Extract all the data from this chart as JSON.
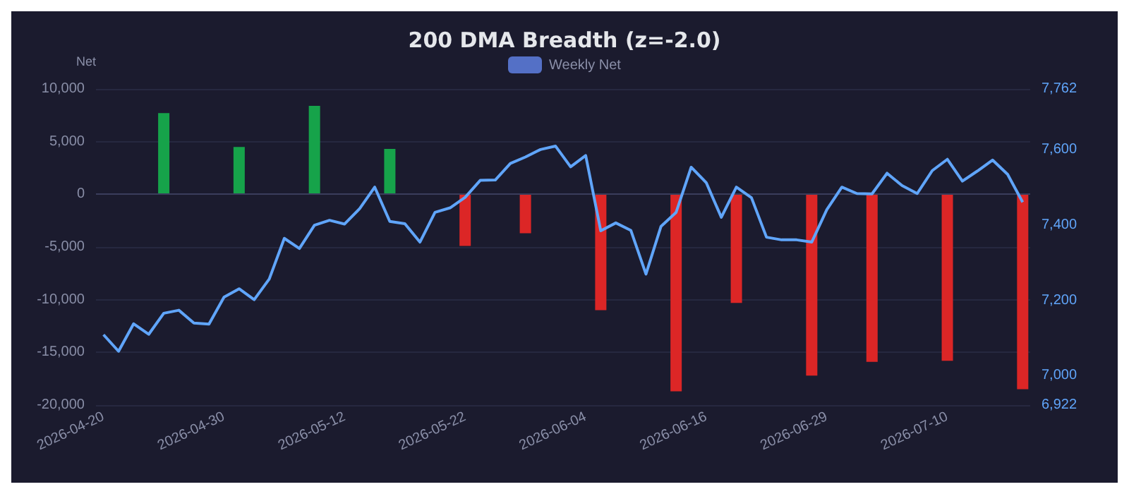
{
  "chart_data": {
    "type": "bar",
    "title": "200 DMA Breadth (z=-2.0)",
    "ylabel": "Net",
    "categories": [
      "2026-04-20",
      null,
      null,
      null,
      null,
      null,
      null,
      null,
      "2026-04-30",
      null,
      null,
      null,
      null,
      null,
      null,
      null,
      "2026-05-12",
      null,
      null,
      null,
      null,
      null,
      null,
      null,
      "2026-05-22",
      null,
      null,
      null,
      null,
      null,
      null,
      null,
      "2026-06-04",
      null,
      null,
      null,
      null,
      null,
      null,
      null,
      "2026-06-16",
      null,
      null,
      null,
      null,
      null,
      null,
      null,
      "2026-06-29",
      null,
      null,
      null,
      null,
      null,
      null,
      null,
      "2026-07-10",
      null,
      null,
      null,
      null,
      null
    ],
    "series": [
      {
        "name": "Weekly Net",
        "color": "#5470c6",
        "values": [
          null,
          null,
          null,
          null,
          7700,
          null,
          null,
          null,
          null,
          4500,
          null,
          null,
          null,
          null,
          8400,
          null,
          null,
          null,
          null,
          4300,
          null,
          null,
          null,
          null,
          -4900,
          null,
          null,
          null,
          -3700,
          null,
          null,
          null,
          null,
          -11000,
          null,
          null,
          null,
          null,
          -18700,
          null,
          null,
          null,
          -10300,
          null,
          null,
          null,
          null,
          -17200,
          null,
          null,
          null,
          -15900,
          null,
          null,
          null,
          null,
          -15800,
          null,
          null,
          null,
          null,
          -18500
        ],
        "colors": [
          null,
          null,
          null,
          null,
          "#16a34a",
          null,
          null,
          null,
          null,
          "#16a34a",
          null,
          null,
          null,
          null,
          "#16a34a",
          null,
          null,
          null,
          null,
          "#16a34a",
          null,
          null,
          null,
          null,
          "#dc2626",
          null,
          null,
          null,
          "#dc2626",
          null,
          null,
          null,
          null,
          "#dc2626",
          null,
          null,
          null,
          null,
          "#dc2626",
          null,
          null,
          null,
          "#dc2626",
          null,
          null,
          null,
          null,
          "#dc2626",
          null,
          null,
          null,
          "#dc2626",
          null,
          null,
          null,
          null,
          "#dc2626",
          null,
          null,
          null,
          null,
          "#dc2626"
        ]
      },
      {
        "type": "line",
        "axis": "y2",
        "color": "#60a5fa",
        "values": [
          7109,
          7065,
          7138,
          7110,
          7166,
          7174,
          7140,
          7137,
          7209,
          7231,
          7202,
          7257,
          7365,
          7338,
          7400,
          7413,
          7403,
          7444,
          7501,
          7410,
          7404,
          7355,
          7434,
          7446,
          7474,
          7519,
          7520,
          7564,
          7581,
          7601,
          7610,
          7555,
          7585,
          7385,
          7406,
          7386,
          7270,
          7397,
          7434,
          7554,
          7513,
          7421,
          7501,
          7473,
          7368,
          7361,
          7361,
          7355,
          7441,
          7501,
          7484,
          7483,
          7538,
          7505,
          7484,
          7545,
          7575,
          7517,
          7544,
          7573,
          7535,
          7461
        ]
      }
    ],
    "ylim": [
      -20000,
      10000
    ],
    "yticks": [
      {
        "value": -20000,
        "label": "-20,000"
      },
      {
        "value": -15000,
        "label": "-15,000"
      },
      {
        "value": -10000,
        "label": "-10,000"
      },
      {
        "value": -5000,
        "label": "-5,000"
      },
      0,
      {
        "value": 5000,
        "label": "5,000"
      },
      {
        "value": 10000,
        "label": "10,000"
      }
    ],
    "y2lim": [
      6922,
      7762
    ],
    "y2ticks": [
      {
        "value": 6922,
        "label": "6,922"
      },
      {
        "value": 7000,
        "label": "7,000"
      },
      {
        "value": 7200,
        "label": "7,200"
      },
      {
        "value": 7400,
        "label": "7,400"
      },
      {
        "value": 7600,
        "label": "7,600"
      },
      {
        "value": 7762,
        "label": "7,762"
      }
    ],
    "grid": "y",
    "legend": "top",
    "marker": "none",
    "line_style": "solid"
  }
}
